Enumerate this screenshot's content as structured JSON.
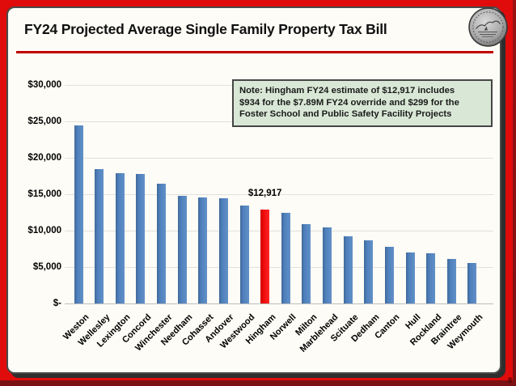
{
  "window": {
    "slide_number": "8"
  },
  "header": {
    "title": "FY24 Projected Average Single Family Property Tax Bill",
    "seal_icon": "town-seal-icon"
  },
  "note": {
    "lines": [
      "Note: Hingham FY24 estimate of $12,917 includes",
      "$934 for the $7.89M FY24 override and $299 for the",
      "Foster School and Public Safety Facility Projects"
    ]
  },
  "chart_data": {
    "type": "bar",
    "title": "FY24 Projected Average Single Family Property Tax Bill",
    "xlabel": "",
    "ylabel": "",
    "categories": [
      "Weston",
      "Wellesley",
      "Lexington",
      "Concord",
      "Winchester",
      "Needham",
      "Cohasset",
      "Andover",
      "Westwood",
      "Hingham",
      "Norwell",
      "Milton",
      "Marblehead",
      "Scituate",
      "Dedham",
      "Canton",
      "Hull",
      "Rockland",
      "Braintree",
      "Weymouth"
    ],
    "values": [
      24400,
      18500,
      17900,
      17800,
      16500,
      14800,
      14600,
      14400,
      13500,
      12917,
      12400,
      10900,
      10400,
      9200,
      8700,
      7800,
      7000,
      6900,
      6100,
      5600
    ],
    "ylim": [
      0,
      30000
    ],
    "ytick_interval": 5000,
    "ytick_labels": [
      "$-",
      "$5,000",
      "$10,000",
      "$15,000",
      "$20,000",
      "$25,000",
      "$30,000"
    ],
    "grid": true,
    "legend": false,
    "bar_color": "#4f81bd",
    "highlight": {
      "category": "Hingham",
      "color": "#ee0c0c",
      "label": "$12,917"
    }
  },
  "colors": {
    "frame_red": "#e00b0b",
    "frame_bottom": "#7b1113",
    "title_rule": "#c00000",
    "note_bg": "#d9e8d6",
    "gridline": "#e2e0da",
    "bar_blue": "#4f81bd",
    "bar_red": "#ee0c0c"
  }
}
